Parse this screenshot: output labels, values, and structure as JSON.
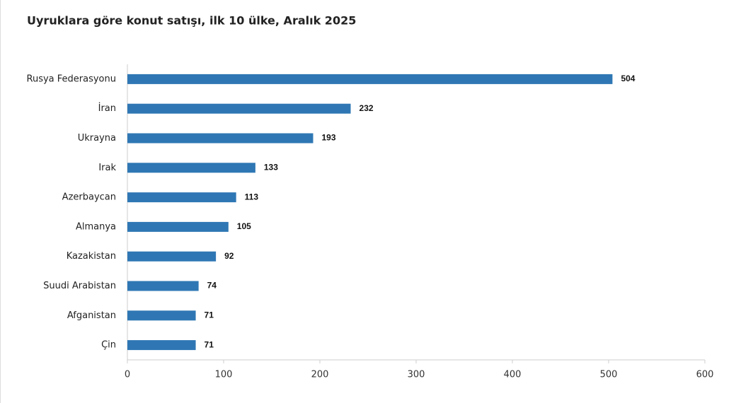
{
  "chart_data": {
    "type": "bar",
    "orientation": "horizontal",
    "title": "Uyruklara göre konut satışı, ilk 10 ülke, Aralık 2025",
    "categories": [
      "Rusya Federasyonu",
      "İran",
      "Ukrayna",
      "Irak",
      "Azerbaycan",
      "Almanya",
      "Kazakistan",
      "Suudi Arabistan",
      "Afganistan",
      "Çin"
    ],
    "values": [
      504,
      232,
      193,
      133,
      113,
      105,
      92,
      74,
      71,
      71
    ],
    "color": "#2f77b4",
    "xlim": [
      0,
      600
    ],
    "xticks": [
      0,
      100,
      200,
      300,
      400,
      500,
      600
    ],
    "grid": false
  }
}
